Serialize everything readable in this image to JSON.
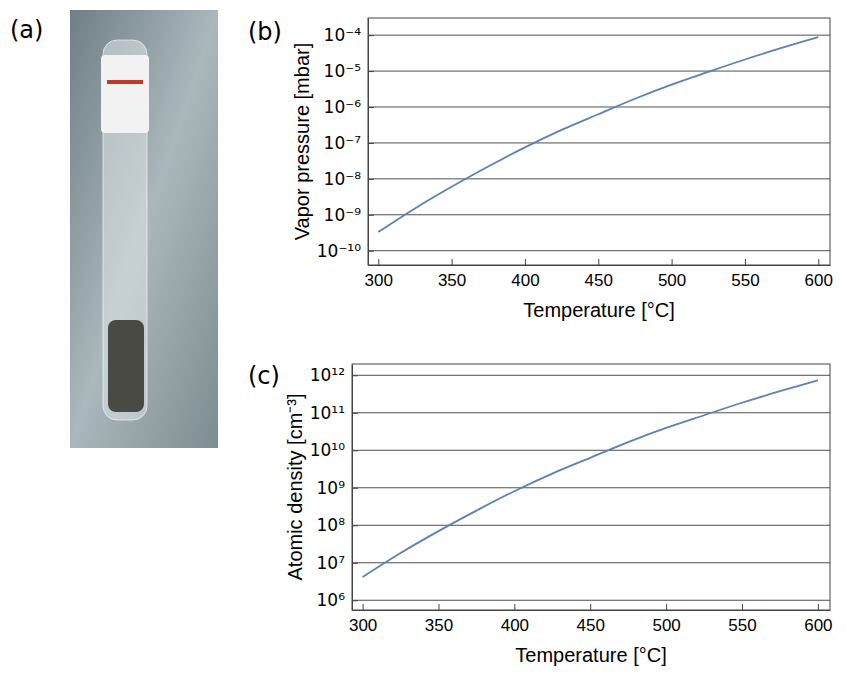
{
  "panel_labels": [
    "(a)",
    "(b)",
    "(c)"
  ],
  "chart_data": [
    {
      "type": "line",
      "x_label": "Temperature [°C]",
      "y_label": "Vapor pressure [mbar]",
      "x": [
        300,
        325,
        350,
        375,
        400,
        425,
        450,
        475,
        500,
        525,
        550,
        575,
        600
      ],
      "values": [
        3.3e-10,
        1.5e-09,
        6e-09,
        2.2e-08,
        7.5e-08,
        2.3e-07,
        6.3e-07,
        1.7e-06,
        4.2e-06,
        9.5e-06,
        2.1e-05,
        4.4e-05,
        8.8e-05
      ],
      "color": "#5e81b5",
      "xlim": [
        293,
        608
      ],
      "ylim": [
        4e-11,
        0.0003
      ],
      "xticks": [
        300,
        350,
        400,
        450,
        500,
        550,
        600
      ],
      "yticks": [
        {
          "value": 1e-10,
          "label": "10⁻¹⁰"
        },
        {
          "value": 1e-09,
          "label": "10⁻⁹"
        },
        {
          "value": 1e-08,
          "label": "10⁻⁸"
        },
        {
          "value": 1e-07,
          "label": "10⁻⁷"
        },
        {
          "value": 1e-06,
          "label": "10⁻⁶"
        },
        {
          "value": 1e-05,
          "label": "10⁻⁵"
        },
        {
          "value": 0.0001,
          "label": "10⁻⁴"
        }
      ],
      "log": "y",
      "grid": true
    },
    {
      "type": "line",
      "x_label": "Temperature [°C]",
      "y_label": "Atomic density [cm⁻³]",
      "x": [
        300,
        325,
        350,
        375,
        400,
        425,
        450,
        475,
        500,
        525,
        550,
        575,
        600
      ],
      "values": [
        4170000.0,
        18200000.0,
        69800000.0,
        246000000.0,
        810000000.0,
        2390000000.0,
        6300000000.0,
        16500000000.0,
        39400000000.0,
        86000000000.0,
        185000000000.0,
        376000000000.0,
        730000000000.0
      ],
      "color": "#5e81b5",
      "xlim": [
        293,
        608
      ],
      "ylim": [
        550000.0,
        2000000000000.0
      ],
      "xticks": [
        300,
        350,
        400,
        450,
        500,
        550,
        600
      ],
      "yticks": [
        {
          "value": 1000000.0,
          "label": "10⁶"
        },
        {
          "value": 10000000.0,
          "label": "10⁷"
        },
        {
          "value": 100000000.0,
          "label": "10⁸"
        },
        {
          "value": 1000000000.0,
          "label": "10⁹"
        },
        {
          "value": 10000000000.0,
          "label": "10¹⁰"
        },
        {
          "value": 100000000000.0,
          "label": "10¹¹"
        },
        {
          "value": 1000000000000.0,
          "label": "10¹²"
        }
      ],
      "log": "y",
      "grid": true
    }
  ]
}
